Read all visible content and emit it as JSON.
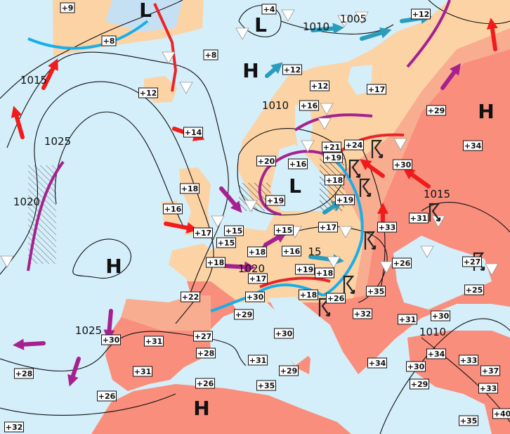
{
  "map": {
    "colors": {
      "sea": "#d4eefa",
      "land_mild": "#fcd3a5",
      "land_warm": "#f9ad90",
      "land_hot": "#f98e7c",
      "ice": "#c6e0f3",
      "cold_front": "#19aee8",
      "warm_front": "#e8262a",
      "occluded_front": "#a6218f",
      "warm_arrow": "#f21b1b",
      "cool_arrow": "#2a9cbc"
    },
    "pressure_centers": [
      "L",
      "L",
      "H",
      "H",
      "L",
      "H",
      "H"
    ],
    "isobar_labels": [
      "1015",
      "1025",
      "1020",
      "1010",
      "1005",
      "1010",
      "1015",
      "1020",
      "15",
      "1025",
      "1010"
    ],
    "temperatures": [
      "+9",
      "+8",
      "+8",
      "+12",
      "+14",
      "+18",
      "+16",
      "+17",
      "+15",
      "+15",
      "+18",
      "+4",
      "+12",
      "+12",
      "+16",
      "+17",
      "+12",
      "+29",
      "+34",
      "+21",
      "+24",
      "+20",
      "+16",
      "+19",
      "+18",
      "+19",
      "+19",
      "+30",
      "+31",
      "+33",
      "+17",
      "+15",
      "+16",
      "+18",
      "+19",
      "+18",
      "+17",
      "+30",
      "+29",
      "+22",
      "+18",
      "+26",
      "+35",
      "+32",
      "+26",
      "+27",
      "+25",
      "+31",
      "+30",
      "+30",
      "+34",
      "+34",
      "+30",
      "+33",
      "+37",
      "+33",
      "+40",
      "+35",
      "+29",
      "+35",
      "+31",
      "+29",
      "+30",
      "+31",
      "+27",
      "+28",
      "+31",
      "+28",
      "+26",
      "+26",
      "+32"
    ],
    "symbols": {
      "shower": "white-triangle",
      "thunderstorm": "lightning-flag",
      "rain_area": "hatched"
    }
  }
}
